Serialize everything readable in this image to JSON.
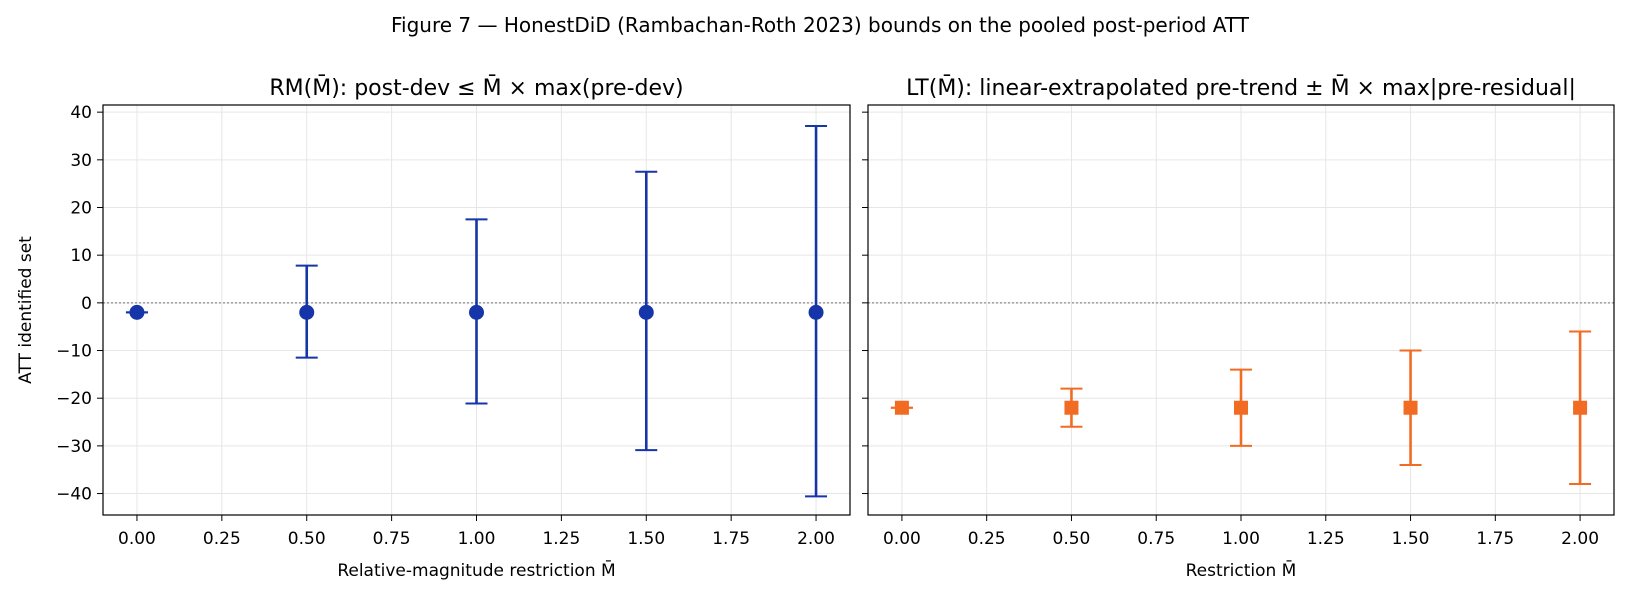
{
  "figure": {
    "title": "Figure 7 — HonestDiD (Rambachan-Roth 2023) bounds on the pooled post-period ATT"
  },
  "chart_data": [
    {
      "type": "errorbar",
      "title": "RM(M̄): post-dev ≤ M̄ × max(pre-dev)",
      "xlabel": "Relative-magnitude restriction  M̄",
      "ylabel": "ATT identified set",
      "xlim": [
        -0.1,
        2.1
      ],
      "ylim": [
        -44.5,
        41.5
      ],
      "xticks": [
        0.0,
        0.25,
        0.5,
        0.75,
        1.0,
        1.25,
        1.5,
        1.75,
        2.0
      ],
      "xtick_labels": [
        "0.00",
        "0.25",
        "0.50",
        "0.75",
        "1.00",
        "1.25",
        "1.50",
        "1.75",
        "2.00"
      ],
      "yticks": [
        40,
        30,
        20,
        10,
        0,
        -10,
        -20,
        -30,
        -40
      ],
      "ytick_labels": [
        "40",
        "30",
        "20",
        "10",
        "0",
        "−10",
        "−20",
        "−30",
        "−40"
      ],
      "grid": true,
      "reference_line_y": 0,
      "marker": "circle",
      "color": "#1535a8",
      "points": [
        {
          "x": 0.0,
          "y": -2,
          "lower": -2,
          "upper": -2
        },
        {
          "x": 0.5,
          "y": -2,
          "lower": -11.5,
          "upper": 7.8
        },
        {
          "x": 1.0,
          "y": -2,
          "lower": -21.1,
          "upper": 17.5
        },
        {
          "x": 1.5,
          "y": -2,
          "lower": -30.9,
          "upper": 27.5
        },
        {
          "x": 2.0,
          "y": -2,
          "lower": -40.6,
          "upper": 37.1
        }
      ]
    },
    {
      "type": "errorbar",
      "title": "LT(M̄): linear-extrapolated pre-trend ± M̄ × max|pre-residual|",
      "xlabel": "Restriction  M̄",
      "ylabel": "",
      "xlim": [
        -0.1,
        2.1
      ],
      "ylim": [
        -44.5,
        41.5
      ],
      "xticks": [
        0.0,
        0.25,
        0.5,
        0.75,
        1.0,
        1.25,
        1.5,
        1.75,
        2.0
      ],
      "xtick_labels": [
        "0.00",
        "0.25",
        "0.50",
        "0.75",
        "1.00",
        "1.25",
        "1.50",
        "1.75",
        "2.00"
      ],
      "yticks": [
        40,
        30,
        20,
        10,
        0,
        -10,
        -20,
        -30,
        -40
      ],
      "ytick_labels": [],
      "grid": true,
      "reference_line_y": 0,
      "marker": "square",
      "color": "#f26b22",
      "points": [
        {
          "x": 0.0,
          "y": -22,
          "lower": -22,
          "upper": -22
        },
        {
          "x": 0.5,
          "y": -22,
          "lower": -26,
          "upper": -18
        },
        {
          "x": 1.0,
          "y": -22,
          "lower": -30,
          "upper": -14
        },
        {
          "x": 1.5,
          "y": -22,
          "lower": -34,
          "upper": -10
        },
        {
          "x": 2.0,
          "y": -22,
          "lower": -38,
          "upper": -6
        }
      ]
    }
  ]
}
